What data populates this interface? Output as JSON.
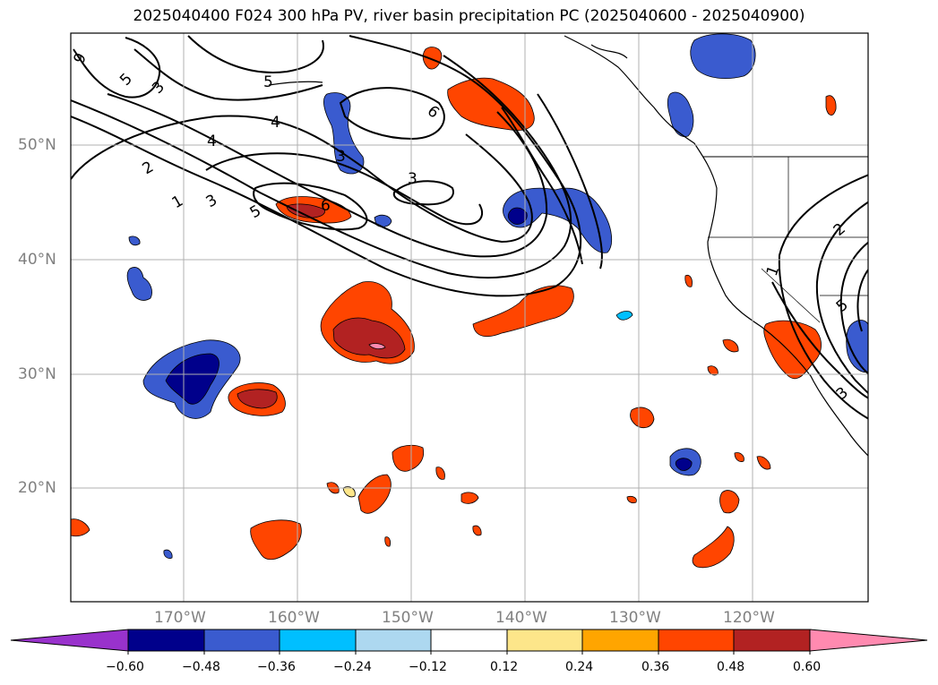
{
  "title": "2025040400 F024 300 hPa PV, river basin precipitation PC (2025040600 - 2025040900)",
  "latitude_labels": [
    "50°N",
    "40°N",
    "30°N",
    "20°N"
  ],
  "longitude_labels": [
    "170°W",
    "160°W",
    "150°W",
    "140°W",
    "130°W",
    "120°W"
  ],
  "contour_labels": [
    "9",
    "5",
    "3",
    "5",
    "4",
    "4",
    "2",
    "1",
    "3",
    "5",
    "6",
    "3",
    "3",
    "6",
    "2",
    "1",
    "5",
    "3"
  ],
  "colorbar": {
    "ticks": [
      "−0.60",
      "−0.48",
      "−0.36",
      "−0.24",
      "−0.12",
      "0.12",
      "0.24",
      "0.36",
      "0.48",
      "0.60"
    ],
    "colors": [
      "#9932cc",
      "#00008b",
      "#3a5bcf",
      "#00bfff",
      "#add8f0",
      "#ffffff",
      "#fde68a",
      "#ffa500",
      "#ff4500",
      "#b22222",
      "#ff8ab0"
    ]
  },
  "colors": {
    "outline": "#000000",
    "grid": "#b0b0b0",
    "label_gray": "#808080"
  }
}
